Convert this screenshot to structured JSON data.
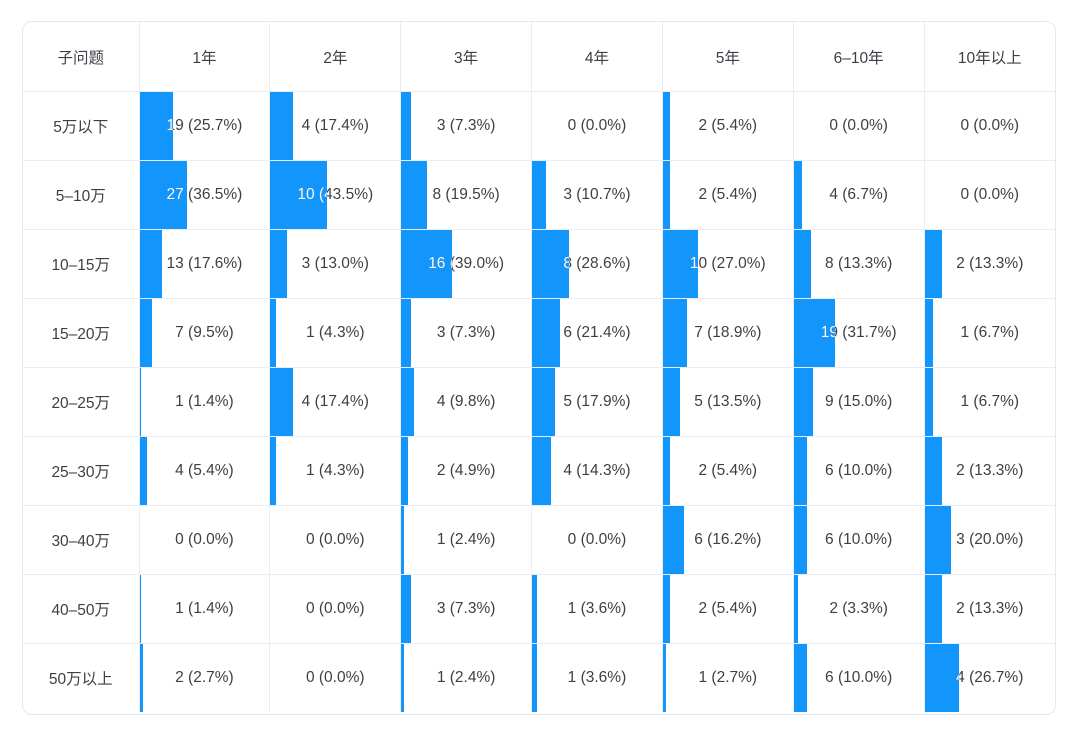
{
  "chart_data": {
    "type": "table",
    "title": "",
    "corner_header": "子问题",
    "columns": [
      "1年",
      "2年",
      "3年",
      "4年",
      "5年",
      "6–10年",
      "10年以上"
    ],
    "row_categories": [
      "5万以下",
      "5–10万",
      "10–15万",
      "15–20万",
      "20–25万",
      "25–30万",
      "30–40万",
      "40–50万",
      "50万以上"
    ],
    "cell_label_format": "{count} ({pct}%)",
    "bar_scale": "percent_of_column_width",
    "bar_color": "#1296fb",
    "text_color": "#3c3f45",
    "grid_color": "#ebedf4",
    "cells": [
      [
        [
          19,
          25.7
        ],
        [
          4,
          17.4
        ],
        [
          3,
          7.3
        ],
        [
          0,
          0.0
        ],
        [
          2,
          5.4
        ],
        [
          0,
          0.0
        ],
        [
          0,
          0.0
        ]
      ],
      [
        [
          27,
          36.5
        ],
        [
          10,
          43.5
        ],
        [
          8,
          19.5
        ],
        [
          3,
          10.7
        ],
        [
          2,
          5.4
        ],
        [
          4,
          6.7
        ],
        [
          0,
          0.0
        ]
      ],
      [
        [
          13,
          17.6
        ],
        [
          3,
          13.0
        ],
        [
          16,
          39.0
        ],
        [
          8,
          28.6
        ],
        [
          10,
          27.0
        ],
        [
          8,
          13.3
        ],
        [
          2,
          13.3
        ]
      ],
      [
        [
          7,
          9.5
        ],
        [
          1,
          4.3
        ],
        [
          3,
          7.3
        ],
        [
          6,
          21.4
        ],
        [
          7,
          18.9
        ],
        [
          19,
          31.7
        ],
        [
          1,
          6.7
        ]
      ],
      [
        [
          1,
          1.4
        ],
        [
          4,
          17.4
        ],
        [
          4,
          9.8
        ],
        [
          5,
          17.9
        ],
        [
          5,
          13.5
        ],
        [
          9,
          15.0
        ],
        [
          1,
          6.7
        ]
      ],
      [
        [
          4,
          5.4
        ],
        [
          1,
          4.3
        ],
        [
          2,
          4.9
        ],
        [
          4,
          14.3
        ],
        [
          2,
          5.4
        ],
        [
          6,
          10.0
        ],
        [
          2,
          13.3
        ]
      ],
      [
        [
          0,
          0.0
        ],
        [
          0,
          0.0
        ],
        [
          1,
          2.4
        ],
        [
          0,
          0.0
        ],
        [
          6,
          16.2
        ],
        [
          6,
          10.0
        ],
        [
          3,
          20.0
        ]
      ],
      [
        [
          1,
          1.4
        ],
        [
          0,
          0.0
        ],
        [
          3,
          7.3
        ],
        [
          1,
          3.6
        ],
        [
          2,
          5.4
        ],
        [
          2,
          3.3
        ],
        [
          2,
          13.3
        ]
      ],
      [
        [
          2,
          2.7
        ],
        [
          0,
          0.0
        ],
        [
          1,
          2.4
        ],
        [
          1,
          3.6
        ],
        [
          1,
          2.7
        ],
        [
          6,
          10.0
        ],
        [
          4,
          26.7
        ]
      ]
    ]
  }
}
